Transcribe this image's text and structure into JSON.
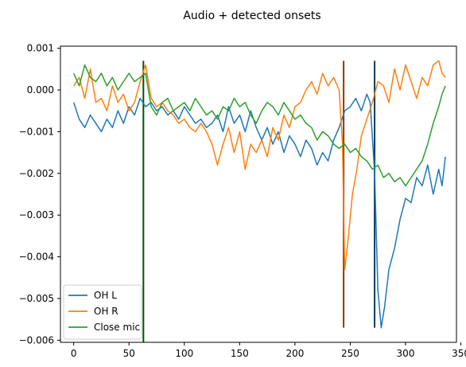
{
  "chart_data": {
    "type": "line",
    "title": "Audio + detected onsets",
    "xlabel": "",
    "ylabel": "",
    "xlim": [
      -12,
      346
    ],
    "ylim": [
      -0.00605,
      0.00105
    ],
    "xticks": [
      0,
      50,
      100,
      150,
      200,
      250,
      300,
      350
    ],
    "xtick_labels": [
      "0",
      "50",
      "100",
      "150",
      "200",
      "250",
      "300",
      "350"
    ],
    "yticks": [
      0.001,
      0.0,
      -0.001,
      -0.002,
      -0.003,
      -0.004,
      -0.005,
      -0.006
    ],
    "ytick_labels": [
      "0.001",
      "0.000",
      "−0.001",
      "−0.002",
      "−0.003",
      "−0.004",
      "−0.005",
      "−0.006"
    ],
    "grid": false,
    "legend": {
      "position": "bottom-left"
    },
    "series": [
      {
        "name": "OH L",
        "color": "#1f77b4",
        "x": [
          0,
          5,
          10,
          15,
          20,
          25,
          30,
          35,
          40,
          45,
          50,
          55,
          60,
          65,
          70,
          75,
          80,
          85,
          90,
          95,
          100,
          105,
          110,
          115,
          120,
          125,
          130,
          135,
          140,
          145,
          150,
          155,
          160,
          165,
          170,
          175,
          180,
          185,
          190,
          195,
          200,
          205,
          210,
          215,
          220,
          225,
          230,
          235,
          240,
          245,
          250,
          255,
          260,
          265,
          268,
          272,
          275,
          278,
          281,
          285,
          290,
          295,
          300,
          305,
          310,
          315,
          320,
          325,
          330,
          333,
          336
        ],
        "y": [
          -0.0003,
          -0.0007,
          -0.0009,
          -0.0006,
          -0.0008,
          -0.001,
          -0.0007,
          -0.0009,
          -0.0005,
          -0.0008,
          -0.0004,
          -0.0006,
          -0.0002,
          -0.0004,
          -0.0003,
          -0.0005,
          -0.0004,
          -0.0006,
          -0.0005,
          -0.0007,
          -0.0004,
          -0.0006,
          -0.0008,
          -0.0007,
          -0.0009,
          -0.0008,
          -0.0006,
          -0.001,
          -0.0004,
          -0.0008,
          -0.0006,
          -0.001,
          -0.0005,
          -0.0009,
          -0.0012,
          -0.0009,
          -0.0013,
          -0.001,
          -0.0015,
          -0.0011,
          -0.0013,
          -0.0016,
          -0.0012,
          -0.0014,
          -0.0018,
          -0.0015,
          -0.0017,
          -0.0012,
          -0.0009,
          -0.0005,
          -0.0004,
          -0.0002,
          -0.0005,
          -0.0001,
          -0.0003,
          -0.002,
          -0.0048,
          -0.0057,
          -0.0052,
          -0.0043,
          -0.0038,
          -0.0031,
          -0.0026,
          -0.0027,
          -0.0021,
          -0.0023,
          -0.0018,
          -0.0025,
          -0.0019,
          -0.0023,
          -0.0016
        ]
      },
      {
        "name": "OH R",
        "color": "#ff7f0e",
        "x": [
          0,
          5,
          10,
          15,
          20,
          25,
          30,
          35,
          40,
          45,
          50,
          55,
          60,
          65,
          70,
          75,
          80,
          85,
          90,
          95,
          100,
          105,
          110,
          115,
          120,
          125,
          130,
          135,
          140,
          145,
          150,
          155,
          160,
          165,
          170,
          175,
          180,
          185,
          190,
          195,
          200,
          205,
          210,
          215,
          220,
          225,
          230,
          235,
          240,
          243,
          245,
          248,
          252,
          256,
          260,
          265,
          270,
          275,
          280,
          285,
          290,
          295,
          300,
          305,
          310,
          315,
          320,
          325,
          330,
          333,
          336
        ],
        "y": [
          0.0001,
          0.0003,
          -0.0002,
          0.0005,
          -0.0003,
          -0.0002,
          -0.0005,
          0.0001,
          -0.0003,
          -0.0001,
          -0.0005,
          -0.0003,
          0.0002,
          0.0006,
          -0.0002,
          -0.0004,
          -0.0003,
          -0.0005,
          -0.0006,
          -0.0008,
          -0.0007,
          -0.0009,
          -0.001,
          -0.0008,
          -0.001,
          -0.0013,
          -0.0018,
          -0.0013,
          -0.0009,
          -0.0015,
          -0.001,
          -0.0019,
          -0.0013,
          -0.0015,
          -0.0012,
          -0.0016,
          -0.0009,
          -0.0012,
          -0.0006,
          -0.0009,
          -0.0004,
          -0.0003,
          0.0,
          0.0002,
          -0.0001,
          0.0004,
          0.0001,
          0.0003,
          0.0,
          -0.0013,
          -0.0043,
          -0.0036,
          -0.0025,
          -0.0019,
          -0.0011,
          -0.0007,
          -0.0003,
          0.0002,
          0.0001,
          -0.0003,
          0.0005,
          0.0,
          0.0006,
          0.0002,
          -0.0002,
          0.0003,
          0.0001,
          0.0006,
          0.0007,
          0.0004,
          0.0003
        ]
      },
      {
        "name": "Close mic",
        "color": "#2ca02c",
        "x": [
          0,
          5,
          10,
          15,
          20,
          25,
          30,
          35,
          40,
          45,
          50,
          55,
          60,
          65,
          70,
          75,
          80,
          85,
          90,
          95,
          100,
          105,
          110,
          115,
          120,
          125,
          130,
          135,
          140,
          145,
          150,
          155,
          160,
          165,
          170,
          175,
          180,
          185,
          190,
          195,
          200,
          205,
          210,
          215,
          220,
          225,
          230,
          235,
          240,
          245,
          250,
          255,
          260,
          265,
          270,
          275,
          280,
          285,
          290,
          295,
          300,
          305,
          310,
          315,
          320,
          325,
          330,
          333,
          336
        ],
        "y": [
          0.0004,
          0.0001,
          0.0006,
          0.0003,
          0.0002,
          0.0004,
          0.0001,
          0.0003,
          0.0,
          0.0002,
          0.0004,
          0.0002,
          0.0003,
          0.0004,
          -0.0004,
          -0.0006,
          -0.0003,
          -0.0002,
          -0.0005,
          -0.0004,
          -0.0003,
          -0.0005,
          -0.0002,
          -0.0004,
          -0.0006,
          -0.0005,
          -0.0007,
          -0.0004,
          -0.0005,
          -0.0002,
          -0.0004,
          -0.0003,
          -0.0006,
          -0.0008,
          -0.0005,
          -0.0003,
          -0.0004,
          -0.0006,
          -0.0003,
          -0.0005,
          -0.0007,
          -0.0006,
          -0.0008,
          -0.0009,
          -0.0012,
          -0.001,
          -0.0011,
          -0.0013,
          -0.0014,
          -0.0013,
          -0.0015,
          -0.0014,
          -0.0016,
          -0.0017,
          -0.0019,
          -0.0018,
          -0.0021,
          -0.002,
          -0.0022,
          -0.0021,
          -0.0023,
          -0.0021,
          -0.0019,
          -0.0017,
          -0.0013,
          -0.0008,
          -0.0004,
          -0.0001,
          0.0001
        ]
      }
    ],
    "onsets": [
      {
        "series": "Close mic",
        "x": 63,
        "color": "#005500",
        "y_top": 0.0007,
        "y_bottom": -0.0065
      },
      {
        "series": "OH R",
        "x": 244,
        "color": "#8b3a00",
        "y_top": 0.0007,
        "y_bottom": -0.0057
      },
      {
        "series": "OH L",
        "x": 272,
        "color": "#0d3b66",
        "y_top": 0.0007,
        "y_bottom": -0.0057
      }
    ]
  }
}
